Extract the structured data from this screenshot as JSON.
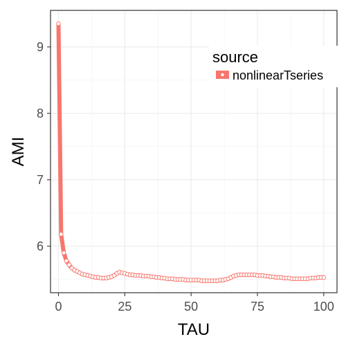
{
  "chart_data": {
    "type": "line",
    "xlabel": "TAU",
    "ylabel": "AMI",
    "xlim": [
      -3,
      105
    ],
    "ylim": [
      5.3,
      9.55
    ],
    "x_ticks": [
      0,
      25,
      50,
      75,
      100
    ],
    "x_tick_labels": [
      "0",
      "25",
      "50",
      "75",
      "100"
    ],
    "y_ticks": [
      6,
      7,
      8,
      9
    ],
    "y_tick_labels": [
      "6",
      "7",
      "8",
      "9"
    ],
    "grid": true,
    "legend": {
      "title": "source",
      "position": "top-right"
    },
    "series": [
      {
        "name": "nonlinearTseries",
        "color": "#F8766D",
        "x": [
          0,
          1,
          2,
          3,
          4,
          5,
          6,
          7,
          8,
          9,
          10,
          11,
          12,
          13,
          14,
          15,
          16,
          17,
          18,
          19,
          20,
          21,
          22,
          23,
          24,
          25,
          26,
          27,
          28,
          29,
          30,
          31,
          32,
          33,
          34,
          35,
          36,
          37,
          38,
          39,
          40,
          41,
          42,
          43,
          44,
          45,
          46,
          47,
          48,
          49,
          50,
          51,
          52,
          53,
          54,
          55,
          56,
          57,
          58,
          59,
          60,
          61,
          62,
          63,
          64,
          65,
          66,
          67,
          68,
          69,
          70,
          71,
          72,
          73,
          74,
          75,
          76,
          77,
          78,
          79,
          80,
          81,
          82,
          83,
          84,
          85,
          86,
          87,
          88,
          89,
          90,
          91,
          92,
          93,
          94,
          95,
          96,
          97,
          98,
          99,
          100
        ],
        "y": [
          9.35,
          6.18,
          5.9,
          5.78,
          5.72,
          5.67,
          5.64,
          5.62,
          5.6,
          5.58,
          5.57,
          5.56,
          5.55,
          5.54,
          5.53,
          5.53,
          5.52,
          5.52,
          5.52,
          5.53,
          5.54,
          5.56,
          5.59,
          5.61,
          5.6,
          5.59,
          5.58,
          5.57,
          5.57,
          5.56,
          5.56,
          5.56,
          5.55,
          5.55,
          5.55,
          5.54,
          5.54,
          5.53,
          5.53,
          5.52,
          5.52,
          5.51,
          5.51,
          5.51,
          5.5,
          5.5,
          5.5,
          5.5,
          5.49,
          5.49,
          5.49,
          5.49,
          5.49,
          5.49,
          5.48,
          5.48,
          5.48,
          5.48,
          5.48,
          5.48,
          5.48,
          5.49,
          5.49,
          5.5,
          5.51,
          5.53,
          5.55,
          5.56,
          5.57,
          5.57,
          5.57,
          5.57,
          5.57,
          5.57,
          5.57,
          5.56,
          5.56,
          5.56,
          5.55,
          5.55,
          5.54,
          5.54,
          5.53,
          5.53,
          5.53,
          5.52,
          5.52,
          5.52,
          5.51,
          5.51,
          5.51,
          5.51,
          5.51,
          5.51,
          5.51,
          5.52,
          5.52,
          5.52,
          5.53,
          5.53,
          5.53
        ]
      }
    ]
  }
}
